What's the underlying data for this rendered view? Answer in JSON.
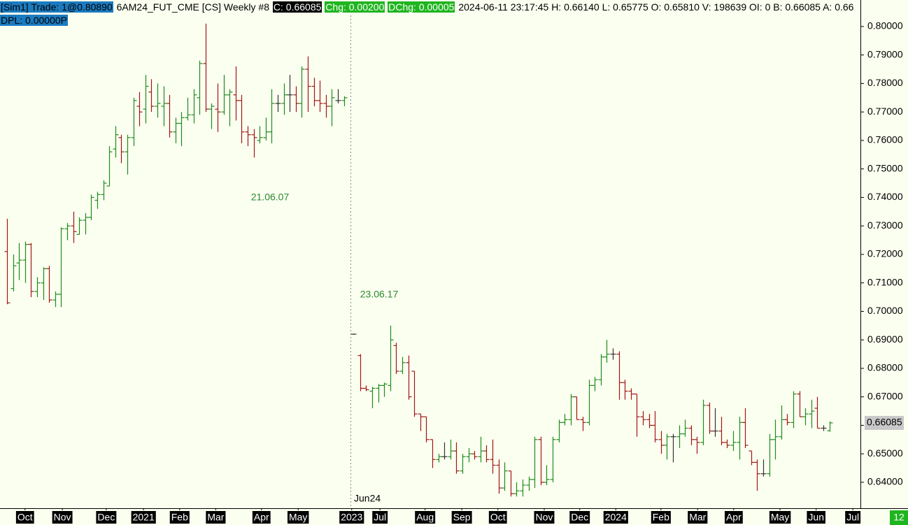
{
  "header": {
    "account": "[Sim1]  Trade: 1@0.80890",
    "symbol": "6AM24_FUT_CME [CS]  Weekly #8",
    "close": "C: 0.66085",
    "change": "Chg: 0.00200",
    "dchange": "DChg: 0.00005",
    "stats": "2024-06-11 23:17:45 H: 0.66140 L: 0.65775 O: 0.65810 V: 198639 OI: 0 B: 0.66085 A: 0.66",
    "dpl": "DPL: 0.00000P"
  },
  "corner_badge": "12",
  "chart_data": {
    "type": "ohlc",
    "up_color": "#1e8c1e",
    "down_color": "#a31515",
    "flat_color": "#333333",
    "annotations": [
      "21.06.07",
      "23.06.17",
      "Jun24"
    ],
    "price_label": {
      "value": 0.66085,
      "label": "0.66085"
    },
    "ylim": [
      0.6309,
      0.8093
    ],
    "xlim": [
      -1.16,
      141.86
    ],
    "yticks": [
      {
        "value": 0.64,
        "label": "0.64000"
      },
      {
        "value": 0.65,
        "label": "0.65000"
      },
      {
        "value": 0.66,
        "label": "0.66000"
      },
      {
        "value": 0.67,
        "label": "0.67000"
      },
      {
        "value": 0.68,
        "label": "0.68000"
      },
      {
        "value": 0.69,
        "label": "0.69000"
      },
      {
        "value": 0.7,
        "label": "0.70000"
      },
      {
        "value": 0.71,
        "label": "0.71000"
      },
      {
        "value": 0.72,
        "label": "0.72000"
      },
      {
        "value": 0.73,
        "label": "0.73000"
      },
      {
        "value": 0.74,
        "label": "0.74000"
      },
      {
        "value": 0.75,
        "label": "0.75000"
      },
      {
        "value": 0.76,
        "label": "0.76000"
      },
      {
        "value": 0.77,
        "label": "0.77000"
      },
      {
        "value": 0.78,
        "label": "0.78000"
      },
      {
        "value": 0.79,
        "label": "0.79000"
      },
      {
        "value": 0.8,
        "label": "0.80000"
      }
    ],
    "xticks": [
      {
        "value": 3.0,
        "label": "Oct"
      },
      {
        "value": 9.2,
        "label": "Nov"
      },
      {
        "value": 16.5,
        "label": "Dec"
      },
      {
        "value": 22.7,
        "label": "2021"
      },
      {
        "value": 28.7,
        "label": "Feb"
      },
      {
        "value": 34.7,
        "label": "Mar"
      },
      {
        "value": 42.3,
        "label": "Apr"
      },
      {
        "value": 48.4,
        "label": "May"
      },
      {
        "value": 57.3,
        "label": "2023"
      },
      {
        "value": 62.0,
        "label": "Jul"
      },
      {
        "value": 69.5,
        "label": "Aug"
      },
      {
        "value": 75.6,
        "label": "Sep"
      },
      {
        "value": 81.6,
        "label": "Oct"
      },
      {
        "value": 89.3,
        "label": "Nov"
      },
      {
        "value": 95.2,
        "label": "Dec"
      },
      {
        "value": 101.2,
        "label": "2024"
      },
      {
        "value": 108.7,
        "label": "Feb"
      },
      {
        "value": 114.8,
        "label": "Mar"
      },
      {
        "value": 120.8,
        "label": "Apr"
      },
      {
        "value": 128.5,
        "label": "May"
      },
      {
        "value": 134.5,
        "label": "Jun"
      },
      {
        "value": 140.6,
        "label": "Jul"
      }
    ],
    "x": [
      0,
      1,
      2,
      3,
      4,
      5,
      6,
      7,
      8,
      9,
      10,
      11,
      12,
      13,
      14,
      15,
      16,
      17,
      18,
      19,
      20,
      21,
      22,
      23,
      24,
      25,
      26,
      27,
      28,
      29,
      30,
      31,
      32,
      33,
      34,
      35,
      36,
      37,
      38,
      39,
      40,
      41,
      42,
      43,
      44,
      45,
      46,
      47,
      48,
      49,
      50,
      51,
      52,
      53,
      54,
      55,
      56,
      57.6,
      58.7,
      59.7,
      60.7,
      61.7,
      62.7,
      63.7,
      64.7,
      65.7,
      66.7,
      67.7,
      68.7,
      69.7,
      70.7,
      71.7,
      72.7,
      73.7,
      74.7,
      75.7,
      76.7,
      77.7,
      78.7,
      79.7,
      80.7,
      81.7,
      82.7,
      83.7,
      84.7,
      85.7,
      86.7,
      87.7,
      88.7,
      89.7,
      90.7,
      91.7,
      92.7,
      93.7,
      94.7,
      95.7,
      96.7,
      97.7,
      98.7,
      99.7,
      100.7,
      101.7,
      102.7,
      103.7,
      104.7,
      105.7,
      106.7,
      107.7,
      108.7,
      109.7,
      110.7,
      111.7,
      112.7,
      113.7,
      114.7,
      115.7,
      116.7,
      117.7,
      118.7,
      119.7,
      120.7,
      121.7,
      122.7,
      123.7,
      124.7,
      125.7,
      126.7,
      127.7,
      128.7,
      129.7,
      130.7,
      131.7,
      132.7,
      133.7,
      134.7,
      135.7,
      136.7
    ],
    "open": [
      0.721,
      0.708,
      0.717,
      0.718,
      0.7235,
      0.707,
      0.71,
      0.715,
      0.704,
      0.706,
      0.729,
      0.73,
      0.727,
      0.732,
      0.733,
      0.739,
      0.741,
      0.744,
      0.757,
      0.761,
      0.756,
      0.761,
      0.772,
      0.771,
      0.777,
      0.772,
      0.772,
      0.773,
      0.763,
      0.766,
      0.768,
      0.769,
      0.775,
      0.787,
      0.771,
      0.771,
      0.77,
      0.776,
      0.776,
      0.774,
      0.763,
      0.762,
      0.76,
      0.761,
      0.763,
      0.773,
      0.773,
      0.776,
      0.776,
      0.773,
      0.785,
      0.779,
      0.774,
      0.773,
      0.772,
      0.774,
      0.774,
      0.692,
      0.6845,
      0.673,
      0.672,
      0.673,
      0.674,
      0.674,
      0.688,
      0.679,
      0.682,
      0.679,
      0.664,
      0.663,
      0.655,
      0.648,
      0.649,
      0.649,
      0.651,
      0.644,
      0.649,
      0.65,
      0.649,
      0.651,
      0.648,
      0.646,
      0.638,
      0.644,
      0.636,
      0.637,
      0.639,
      0.641,
      0.655,
      0.64,
      0.641,
      0.655,
      0.661,
      0.662,
      0.67,
      0.662,
      0.661,
      0.674,
      0.676,
      0.684,
      0.685,
      0.685,
      0.675,
      0.672,
      0.671,
      0.663,
      0.662,
      0.66,
      0.655,
      0.653,
      0.656,
      0.656,
      0.657,
      0.659,
      0.655,
      0.654,
      0.667,
      0.658,
      0.658,
      0.654,
      0.653,
      0.654,
      0.661,
      0.651,
      0.647,
      0.643,
      0.643,
      0.655,
      0.656,
      0.662,
      0.661,
      0.671,
      0.663,
      0.664,
      0.666,
      0.659,
      0.6581
    ],
    "high": [
      0.7325,
      0.72,
      0.724,
      0.7245,
      0.724,
      0.712,
      0.7155,
      0.716,
      0.707,
      0.7295,
      0.731,
      0.735,
      0.733,
      0.7345,
      0.741,
      0.742,
      0.746,
      0.758,
      0.765,
      0.762,
      0.762,
      0.775,
      0.777,
      0.783,
      0.7815,
      0.78,
      0.779,
      0.776,
      0.768,
      0.77,
      0.775,
      0.778,
      0.788,
      0.801,
      0.773,
      0.78,
      0.783,
      0.778,
      0.786,
      0.776,
      0.765,
      0.764,
      0.765,
      0.768,
      0.778,
      0.776,
      0.78,
      0.783,
      0.779,
      0.786,
      0.7895,
      0.782,
      0.781,
      0.776,
      0.778,
      0.778,
      0.7755,
      0.692,
      0.685,
      0.674,
      0.6735,
      0.6745,
      0.675,
      0.695,
      0.689,
      0.684,
      0.6845,
      0.679,
      0.664,
      0.663,
      0.655,
      0.65,
      0.654,
      0.655,
      0.654,
      0.65,
      0.652,
      0.651,
      0.656,
      0.653,
      0.655,
      0.648,
      0.647,
      0.644,
      0.64,
      0.641,
      0.642,
      0.656,
      0.656,
      0.646,
      0.656,
      0.662,
      0.664,
      0.671,
      0.67,
      0.663,
      0.676,
      0.677,
      0.685,
      0.69,
      0.687,
      0.686,
      0.676,
      0.673,
      0.671,
      0.665,
      0.664,
      0.665,
      0.658,
      0.657,
      0.657,
      0.66,
      0.662,
      0.66,
      0.656,
      0.669,
      0.668,
      0.666,
      0.663,
      0.655,
      0.658,
      0.663,
      0.666,
      0.651,
      0.648,
      0.648,
      0.657,
      0.662,
      0.667,
      0.664,
      0.672,
      0.672,
      0.666,
      0.669,
      0.67,
      0.66,
      0.6614
    ],
    "low": [
      0.7025,
      0.707,
      0.711,
      0.71,
      0.705,
      0.705,
      0.704,
      0.703,
      0.7015,
      0.7015,
      0.725,
      0.724,
      0.727,
      0.727,
      0.732,
      0.736,
      0.739,
      0.744,
      0.754,
      0.752,
      0.748,
      0.758,
      0.765,
      0.766,
      0.77,
      0.768,
      0.765,
      0.761,
      0.759,
      0.758,
      0.767,
      0.766,
      0.769,
      0.77,
      0.764,
      0.763,
      0.769,
      0.765,
      0.767,
      0.759,
      0.758,
      0.754,
      0.759,
      0.76,
      0.759,
      0.77,
      0.769,
      0.77,
      0.77,
      0.768,
      0.77,
      0.772,
      0.77,
      0.768,
      0.765,
      0.773,
      0.772,
      0.692,
      0.672,
      0.672,
      0.666,
      0.668,
      0.67,
      0.672,
      0.678,
      0.678,
      0.669,
      0.663,
      0.658,
      0.654,
      0.645,
      0.647,
      0.648,
      0.648,
      0.643,
      0.643,
      0.647,
      0.648,
      0.647,
      0.647,
      0.643,
      0.636,
      0.637,
      0.635,
      0.635,
      0.635,
      0.637,
      0.638,
      0.639,
      0.639,
      0.64,
      0.654,
      0.66,
      0.66,
      0.662,
      0.658,
      0.66,
      0.672,
      0.674,
      0.682,
      0.683,
      0.669,
      0.669,
      0.669,
      0.656,
      0.66,
      0.659,
      0.654,
      0.65,
      0.648,
      0.647,
      0.652,
      0.656,
      0.653,
      0.65,
      0.653,
      0.657,
      0.656,
      0.653,
      0.652,
      0.651,
      0.648,
      0.652,
      0.646,
      0.637,
      0.642,
      0.642,
      0.648,
      0.655,
      0.66,
      0.659,
      0.663,
      0.66,
      0.659,
      0.659,
      0.658,
      0.65775
    ],
    "close": [
      0.703,
      0.716,
      0.718,
      0.7235,
      0.707,
      0.71,
      0.715,
      0.704,
      0.706,
      0.729,
      0.73,
      0.728,
      0.732,
      0.733,
      0.74,
      0.741,
      0.745,
      0.756,
      0.762,
      0.756,
      0.761,
      0.774,
      0.77,
      0.779,
      0.772,
      0.773,
      0.773,
      0.763,
      0.766,
      0.768,
      0.769,
      0.776,
      0.787,
      0.771,
      0.772,
      0.77,
      0.776,
      0.777,
      0.774,
      0.763,
      0.762,
      0.761,
      0.761,
      0.763,
      0.773,
      0.773,
      0.776,
      0.776,
      0.773,
      0.785,
      0.779,
      0.774,
      0.773,
      0.772,
      0.775,
      0.774,
      0.775,
      0.692,
      0.673,
      0.6725,
      0.673,
      0.674,
      0.6745,
      0.69,
      0.679,
      0.682,
      0.67,
      0.664,
      0.663,
      0.655,
      0.648,
      0.649,
      0.649,
      0.651,
      0.644,
      0.649,
      0.65,
      0.649,
      0.651,
      0.648,
      0.646,
      0.638,
      0.644,
      0.636,
      0.637,
      0.639,
      0.641,
      0.655,
      0.64,
      0.641,
      0.655,
      0.661,
      0.662,
      0.67,
      0.662,
      0.661,
      0.674,
      0.676,
      0.684,
      0.685,
      0.685,
      0.675,
      0.672,
      0.671,
      0.663,
      0.662,
      0.66,
      0.655,
      0.653,
      0.656,
      0.656,
      0.657,
      0.659,
      0.655,
      0.654,
      0.667,
      0.658,
      0.658,
      0.654,
      0.653,
      0.654,
      0.661,
      0.653,
      0.647,
      0.643,
      0.643,
      0.655,
      0.656,
      0.662,
      0.661,
      0.671,
      0.663,
      0.664,
      0.665,
      0.659,
      0.659,
      0.66085
    ]
  }
}
